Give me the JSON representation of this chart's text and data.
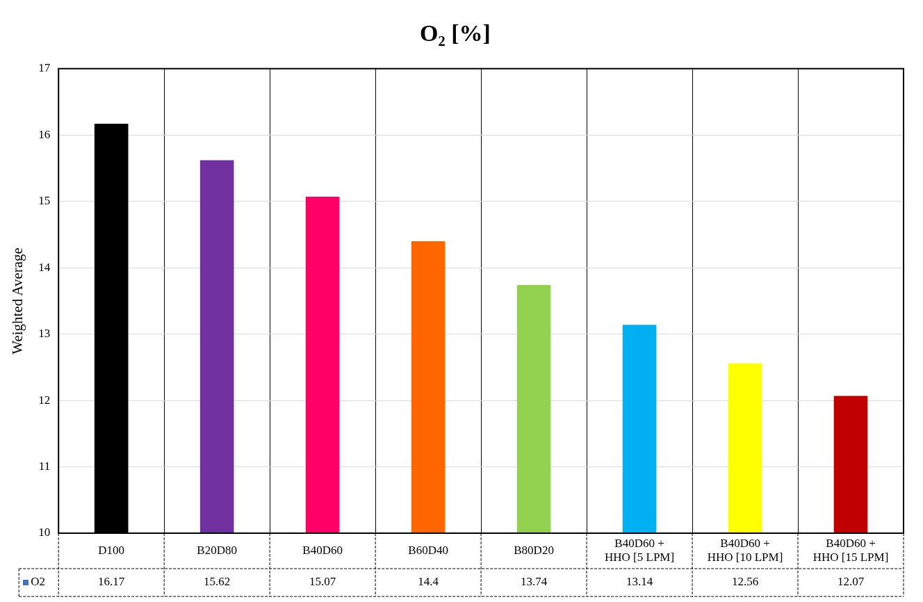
{
  "chart_data": {
    "type": "bar",
    "title": "O₂ [%]",
    "ylabel": "Weighted Average",
    "categories": [
      "D100",
      "B20D80",
      "B40D60",
      "B60D40",
      "B80D20",
      "B40D60 + HHO [5 LPM]",
      "B40D60 + HHO [10 LPM]",
      "B40D60 + HHO [15 LPM]"
    ],
    "series": [
      {
        "name": "O2",
        "color": "#4472c4",
        "colors": [
          "#000000",
          "#7030a0",
          "#ff0066",
          "#ff6600",
          "#92d050",
          "#00b0f0",
          "#ffff00",
          "#c00000"
        ],
        "values": [
          16.17,
          15.62,
          15.07,
          14.4,
          13.74,
          13.14,
          12.56,
          12.07
        ]
      }
    ],
    "ylim": [
      10,
      17
    ],
    "yticks": [
      10,
      11,
      12,
      13,
      14,
      15,
      16,
      17
    ],
    "grid": true,
    "data_labels": true,
    "legend": "bottom"
  }
}
